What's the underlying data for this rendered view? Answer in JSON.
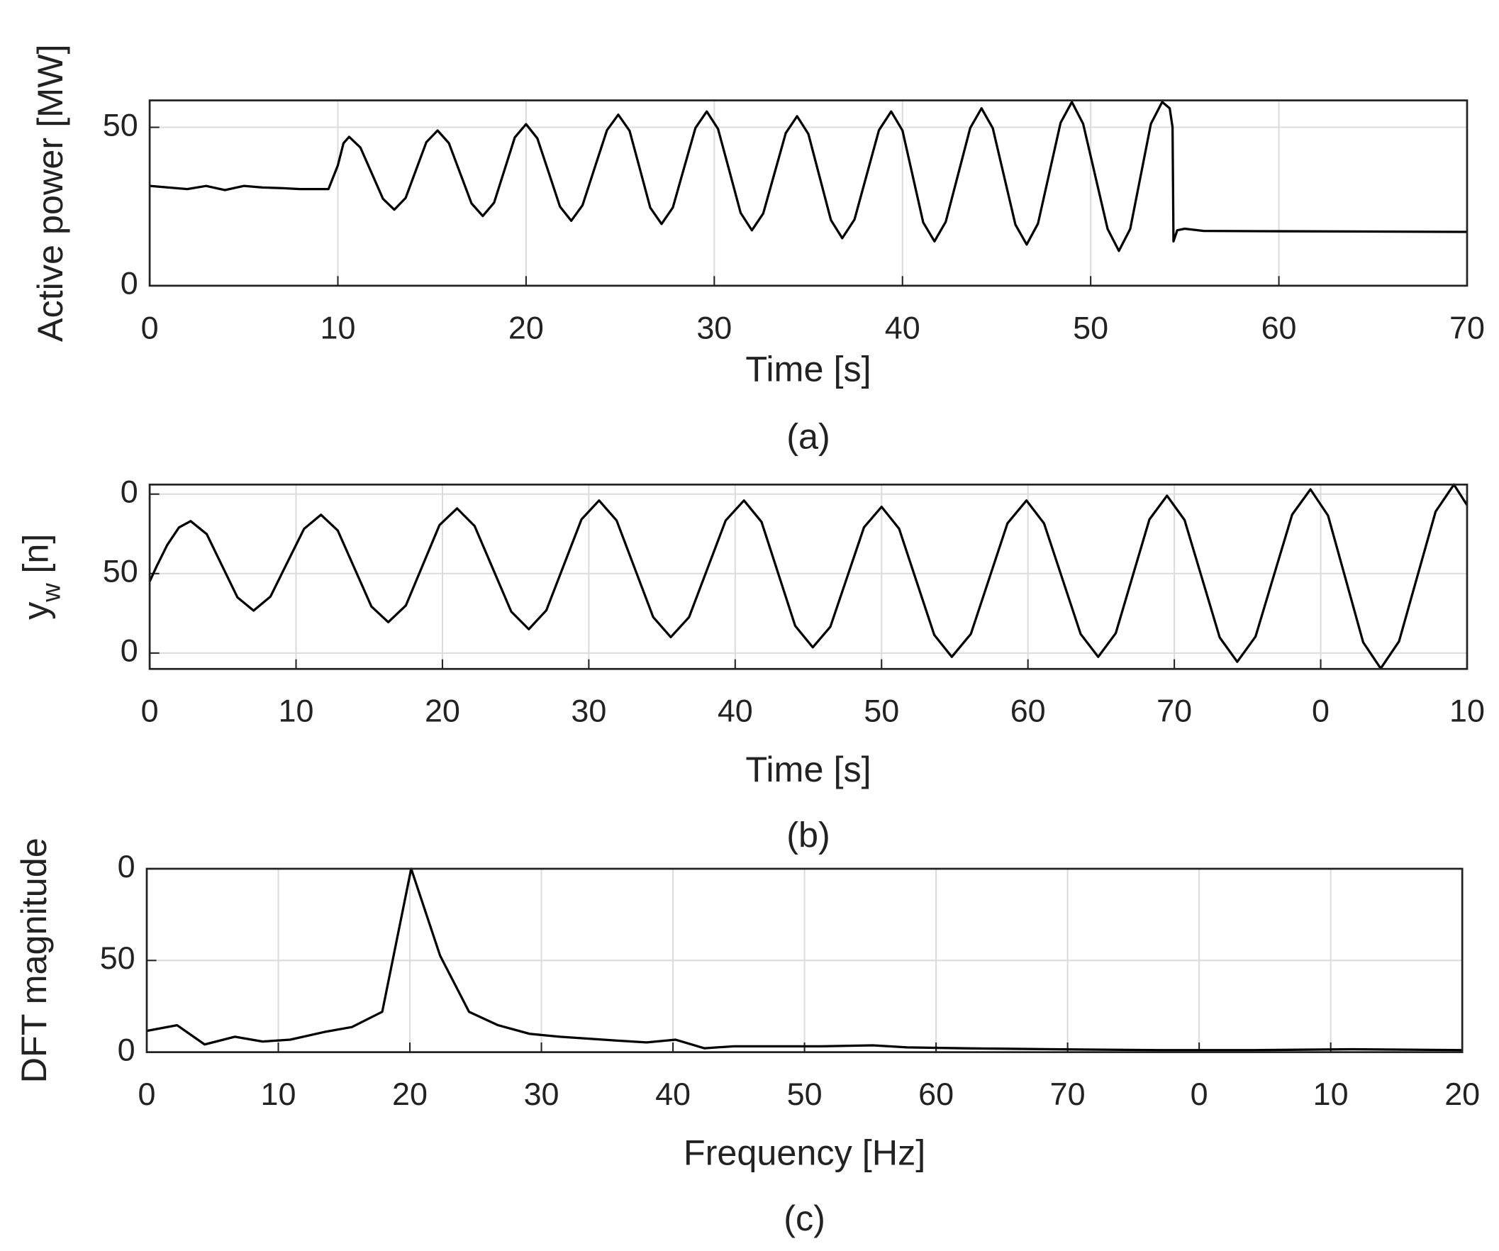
{
  "chart_data": [
    {
      "type": "line",
      "title": "(a)",
      "xlabel": "Time [s]",
      "ylabel": "Active power [MW]",
      "color": "#000000",
      "grid": true,
      "xlim": [
        0,
        70
      ],
      "xticks": [
        0,
        10,
        20,
        30,
        40,
        50,
        60,
        70
      ],
      "ylim": [
        0,
        58.5
      ],
      "yticks": [
        0,
        50
      ],
      "x": [
        0,
        1,
        2,
        3,
        4,
        5,
        6,
        7,
        8,
        9.5,
        10,
        10.3,
        10.6,
        11.2,
        11.8,
        12.4,
        13,
        13.6,
        14.15,
        14.7,
        15.3,
        15.9,
        16.5,
        17.1,
        17.7,
        18.3,
        18.85,
        19.4,
        20,
        20.6,
        21.2,
        21.8,
        22.4,
        23,
        23.65,
        24.3,
        24.9,
        25.5,
        26.05,
        26.6,
        27.2,
        27.8,
        28.4,
        29,
        29.6,
        30.2,
        30.8,
        31.4,
        32,
        32.6,
        33.2,
        33.8,
        34.4,
        35,
        35.6,
        36.2,
        36.8,
        37.45,
        38.1,
        38.75,
        39.4,
        40,
        40.55,
        41.1,
        41.7,
        42.3,
        42.95,
        43.6,
        44.2,
        44.8,
        45.4,
        46,
        46.6,
        47.2,
        47.8,
        48.4,
        49,
        49.6,
        50.25,
        50.9,
        51.5,
        52.1,
        52.65,
        53.2,
        53.8,
        54.2,
        54.35,
        54.4,
        54.6,
        55,
        56,
        60,
        65,
        70
      ],
      "values": [
        31.5,
        31,
        30.5,
        31.5,
        30.2,
        31.5,
        31,
        30.8,
        30.5,
        30.5,
        38,
        45,
        47,
        43.6,
        35.5,
        27.4,
        24,
        27.7,
        36.5,
        45.3,
        49,
        45,
        35.5,
        26,
        22,
        26.2,
        36.5,
        46.8,
        51,
        46.5,
        35.8,
        25,
        20.5,
        25.4,
        37.3,
        49.1,
        54,
        48.9,
        36.8,
        24.6,
        19.5,
        24.7,
        37.3,
        49.8,
        55,
        49.5,
        36.3,
        23,
        17.5,
        22.8,
        35.5,
        48.2,
        53.5,
        47.9,
        34.3,
        20.7,
        15,
        20.9,
        35,
        49.1,
        55,
        49,
        34.5,
        20,
        14,
        20.2,
        35,
        49.8,
        56,
        49.7,
        34.5,
        19.3,
        13,
        19.6,
        35.5,
        51.4,
        58,
        51.1,
        34.5,
        17.9,
        11,
        17.9,
        34.5,
        51.1,
        58,
        56,
        50,
        14,
        17.5,
        18,
        17.3,
        17.2,
        17.1,
        17
      ]
    },
    {
      "type": "line",
      "title": "(b)",
      "xlabel": "Time [s]",
      "ylabel": "y",
      "ylabel_subscript": "w",
      "ylabel_suffix": "[n]",
      "color": "#000000",
      "grid": true,
      "xlim": [
        0,
        90
      ],
      "xticks": [
        0,
        10,
        20,
        30,
        40,
        50,
        60,
        70,
        {
          "value": 80,
          "label": "0"
        },
        {
          "value": 90,
          "label": "10"
        }
      ],
      "ylim": [
        -10,
        106
      ],
      "yticks": [
        0,
        50,
        {
          "value": 100,
          "label": "0"
        }
      ],
      "x": [
        0,
        0.5,
        1.2,
        2,
        2.8,
        3.9,
        4.95,
        6,
        7.1,
        8.25,
        9.4,
        10.55,
        11.7,
        12.85,
        14,
        15.15,
        16.3,
        17.5,
        18.65,
        19.8,
        21,
        22.2,
        23.45,
        24.7,
        25.9,
        27.1,
        28.3,
        29.5,
        30.7,
        31.9,
        33.15,
        34.4,
        35.6,
        36.85,
        38.1,
        39.35,
        40.6,
        41.8,
        42.95,
        44.1,
        45.3,
        46.5,
        47.65,
        48.8,
        50,
        51.2,
        52.4,
        53.6,
        54.8,
        56.1,
        57.35,
        58.6,
        59.9,
        61.1,
        62.35,
        63.6,
        64.8,
        66,
        67.15,
        68.3,
        69.5,
        70.7,
        71.9,
        73.1,
        74.3,
        75.55,
        76.8,
        78.05,
        79.3,
        80.5,
        81.7,
        82.9,
        84.1,
        85.35,
        86.6,
        87.85,
        89.1,
        90
      ],
      "values": [
        45,
        55,
        68,
        79,
        83,
        74.8,
        54.9,
        35,
        26.7,
        35.5,
        56.9,
        78.2,
        87,
        77.1,
        53.2,
        29.3,
        19.4,
        29.9,
        55.2,
        80.5,
        91,
        79.9,
        53,
        26.1,
        15,
        26.9,
        55.5,
        84.1,
        96,
        83.4,
        53,
        22.6,
        10,
        22.6,
        53,
        83.4,
        96,
        82.5,
        49.8,
        17.1,
        3.6,
        16.5,
        47.8,
        79.1,
        92,
        78.2,
        44.8,
        11.4,
        -2.4,
        12,
        46.8,
        81.6,
        96,
        81.6,
        46.8,
        12,
        -2.4,
        12.5,
        48.3,
        84.1,
        99,
        83.7,
        46.8,
        9.8,
        -5.5,
        10.4,
        48.8,
        87.1,
        103,
        86.5,
        46.7,
        6.8,
        -9.7,
        7.3,
        48.2,
        89,
        106,
        93
      ]
    },
    {
      "type": "line",
      "title": "(c)",
      "xlabel": "Frequency [Hz]",
      "ylabel": "DFT magnitude",
      "color": "#000000",
      "grid": true,
      "xlim": [
        0,
        100
      ],
      "xticks": [
        0,
        10,
        20,
        30,
        40,
        50,
        60,
        70,
        {
          "value": 80,
          "label": "0"
        },
        {
          "value": 90,
          "label": "10"
        },
        {
          "value": 100,
          "label": "20"
        }
      ],
      "ylim": [
        0,
        100
      ],
      "yticks": [
        0,
        50,
        {
          "value": 100,
          "label": "0"
        }
      ],
      "x": [
        0,
        2.3,
        4.4,
        6.7,
        8.8,
        10.9,
        13.5,
        15.6,
        17.9,
        20.1,
        22.3,
        24.5,
        26.7,
        29.1,
        31.4,
        35.8,
        38,
        40.2,
        42.4,
        44.6,
        51.2,
        55.2,
        57.8,
        62.2,
        68.8,
        76.9,
        84.2,
        91.6,
        100
      ],
      "values": [
        11.6,
        14.7,
        4.2,
        8.4,
        5.8,
        6.8,
        11,
        13.7,
        22,
        100,
        52.6,
        22,
        14.7,
        10,
        8.4,
        6.3,
        5.3,
        6.8,
        2.1,
        3.2,
        3.2,
        3.7,
        2.6,
        2.1,
        1.6,
        1.1,
        1.1,
        1.6,
        1.1
      ]
    }
  ]
}
